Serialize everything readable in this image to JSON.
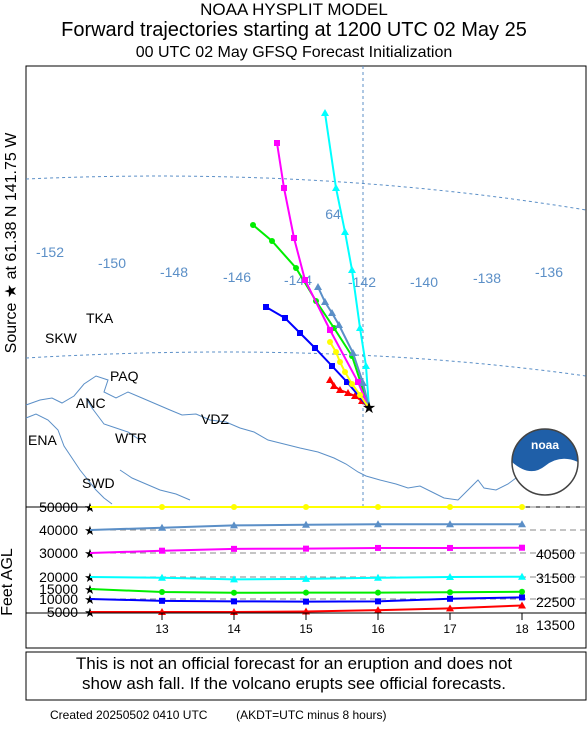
{
  "header": {
    "model": "NOAA HYSPLIT MODEL",
    "title": "Forward trajectories starting at 1200 UTC 02 May 25",
    "subtitle": "00 UTC 02 May     GFSQ  Forecast Initialization"
  },
  "source_label": "Source ★  at   61.38 N  141.75 W",
  "map": {
    "sites": [
      "TKA",
      "SKW",
      "PAQ",
      "ANC",
      "VDZ",
      "WTR",
      "ENA",
      "SWD"
    ],
    "longitudes": [
      "-152",
      "-150",
      "-148",
      "-146",
      "-144",
      "-142",
      "-140",
      "-138",
      "-136"
    ],
    "latitude_label": "64"
  },
  "height_panel": {
    "ylabel": "Feet AGL",
    "left_ticks": [
      "50000",
      "40000",
      "30000",
      "20000",
      "15000",
      "10000",
      "5000"
    ],
    "right_labels": [
      "40500",
      "31500",
      "22500",
      "13500"
    ],
    "x_ticks": [
      "13",
      "14",
      "15",
      "16",
      "17",
      "18"
    ]
  },
  "chart_data": {
    "type": "line",
    "x": [
      12,
      13,
      14,
      15,
      16,
      17,
      18
    ],
    "xlabel": "",
    "ylabel": "Feet AGL",
    "xlim": [
      12,
      18
    ],
    "ylim": [
      5000,
      50000
    ],
    "series": [
      {
        "color": "#ff0000",
        "values": [
          5000,
          5000,
          5000,
          5200,
          5700,
          6400,
          7500
        ]
      },
      {
        "color": "#0000ff",
        "values": [
          10000,
          9300,
          9100,
          9000,
          9100,
          10100,
          10800
        ]
      },
      {
        "color": "#00ee00",
        "values": [
          15000,
          13500,
          13100,
          13200,
          13200,
          13400,
          13600
        ]
      },
      {
        "color": "#00ffff",
        "values": [
          20000,
          19700,
          19000,
          19200,
          19700,
          20000,
          20100
        ]
      },
      {
        "color": "#ff00ff",
        "values": [
          30000,
          31000,
          31800,
          31900,
          32200,
          32200,
          32300
        ]
      },
      {
        "color": "#5b8fc7",
        "values": [
          40000,
          41000,
          42000,
          42300,
          42500,
          42500,
          42500
        ]
      },
      {
        "color": "#ffff00",
        "values": [
          50000,
          50000,
          50000,
          50000,
          50000,
          50000,
          50000
        ]
      }
    ]
  },
  "trajectories": [
    {
      "color": "#ff0000"
    },
    {
      "color": "#0000ff"
    },
    {
      "color": "#00ee00"
    },
    {
      "color": "#00ffff"
    },
    {
      "color": "#ff00ff"
    },
    {
      "color": "#5b8fc7"
    },
    {
      "color": "#ffff00"
    }
  ],
  "disclaimer": {
    "line1": "This is not an official forecast for an eruption and does not",
    "line2": "show ash fall. If the volcano erupts see official forecasts."
  },
  "footer": {
    "created": "Created 20250502 0410 UTC",
    "note": "(AKDT=UTC minus 8 hours)"
  },
  "logo": {
    "text": "noaa"
  }
}
